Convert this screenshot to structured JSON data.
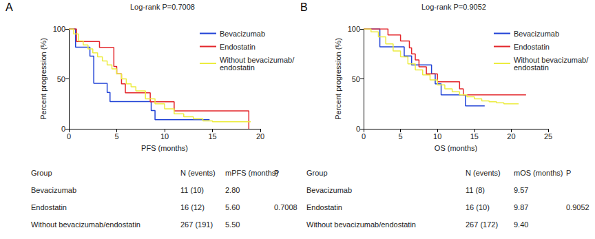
{
  "chart_data": [
    {
      "type": "step",
      "panel": "A",
      "title": "Log-rank P=0.7008",
      "x_label": "PFS (months)",
      "y_label": "Percent progression (%)",
      "xlim": [
        0,
        20
      ],
      "xticks": [
        0,
        5,
        10,
        15,
        20
      ],
      "ylim": [
        0,
        100
      ],
      "yticks": [
        0,
        50,
        100
      ],
      "grid": false,
      "legend": "top right",
      "series": [
        {
          "name": "Bevacizumab",
          "color": "#2143d6",
          "x": [
            0,
            0.7,
            2.2,
            2.6,
            4.0,
            4.3,
            8.6,
            9.0,
            14.7
          ],
          "values": [
            100,
            81.8,
            72.7,
            45.5,
            36.4,
            27.3,
            18.2,
            9.1,
            9.1
          ]
        },
        {
          "name": "Endostatin",
          "color": "#e3262b",
          "x": [
            0,
            0.8,
            3.2,
            4.7,
            5.0,
            5.5,
            5.9,
            8.5,
            11.0,
            18.8
          ],
          "values": [
            100,
            87.5,
            81.3,
            62.5,
            55,
            45,
            36,
            27,
            18,
            0
          ]
        },
        {
          "name": "Without bevacizumab/endostatin",
          "color": "#ecec3e",
          "x": [
            0,
            0.5,
            1,
            1.5,
            2,
            2.5,
            3,
            3.5,
            4,
            4.5,
            5,
            5.5,
            6,
            6.5,
            7,
            8,
            9,
            10,
            11,
            12,
            13,
            14,
            15,
            16,
            19
          ],
          "values": [
            100,
            95,
            88,
            84,
            80,
            76,
            72,
            68,
            64,
            60,
            55,
            50,
            45,
            42,
            38,
            30,
            25,
            20,
            15,
            12,
            10,
            8,
            7,
            7,
            7
          ]
        }
      ],
      "table": {
        "header": [
          "Group",
          "N (events)",
          "mPFS (months)",
          "P"
        ],
        "rows": [
          [
            "Bevacizumab",
            "11 (10)",
            "2.80",
            null
          ],
          [
            "Endostatin",
            "16 (12)",
            "5.60",
            "0.7008"
          ],
          [
            "Without bevacizumab/endostatin",
            "267 (191)",
            "5.50",
            null
          ]
        ]
      }
    },
    {
      "type": "step",
      "panel": "B",
      "title": "Log-rank P=0.9052",
      "x_label": "OS (months)",
      "y_label": "Percent progression (%)",
      "xlim": [
        0,
        25
      ],
      "xticks": [
        0,
        5,
        10,
        15,
        20,
        25
      ],
      "ylim": [
        0,
        100
      ],
      "yticks": [
        0,
        50,
        100
      ],
      "grid": false,
      "legend": "top right",
      "series": [
        {
          "name": "Bevacizumab",
          "color": "#2143d6",
          "x": [
            0,
            2.2,
            5.5,
            6.5,
            9.2,
            9.7,
            10.5,
            13.8,
            16.4
          ],
          "values": [
            100,
            82,
            73,
            64,
            55,
            45,
            34,
            23,
            23
          ]
        },
        {
          "name": "Endostatin",
          "color": "#e3262b",
          "x": [
            0,
            3.3,
            5.0,
            6.2,
            6.5,
            7.0,
            7.5,
            8.5,
            10.0,
            13.0,
            13.5,
            22.0
          ],
          "values": [
            100,
            94,
            88,
            81,
            75,
            69,
            62,
            55,
            47,
            40,
            34,
            34
          ]
        },
        {
          "name": "Without bevacizumab/endostatin",
          "color": "#ecec3e",
          "x": [
            0,
            1,
            2,
            3,
            4,
            5,
            6,
            7,
            8,
            9,
            10,
            11,
            12,
            13,
            14,
            15,
            16,
            17,
            18,
            19,
            20,
            21
          ],
          "values": [
            100,
            97,
            92,
            85,
            78,
            72,
            65,
            59,
            54,
            49,
            44,
            40,
            37,
            34,
            32,
            30,
            28,
            27,
            26,
            25,
            25,
            25
          ]
        }
      ],
      "table": {
        "header": [
          "Group",
          "N (events)",
          "mOS (months)",
          "P"
        ],
        "rows": [
          [
            "Bevacizumab",
            "11 (8)",
            "9.57",
            null
          ],
          [
            "Endostatin",
            "16 (10)",
            "9.87",
            "0.9052"
          ],
          [
            "Without bevacizumab/endostatin",
            "267 (172)",
            "9.40",
            null
          ]
        ]
      }
    }
  ]
}
